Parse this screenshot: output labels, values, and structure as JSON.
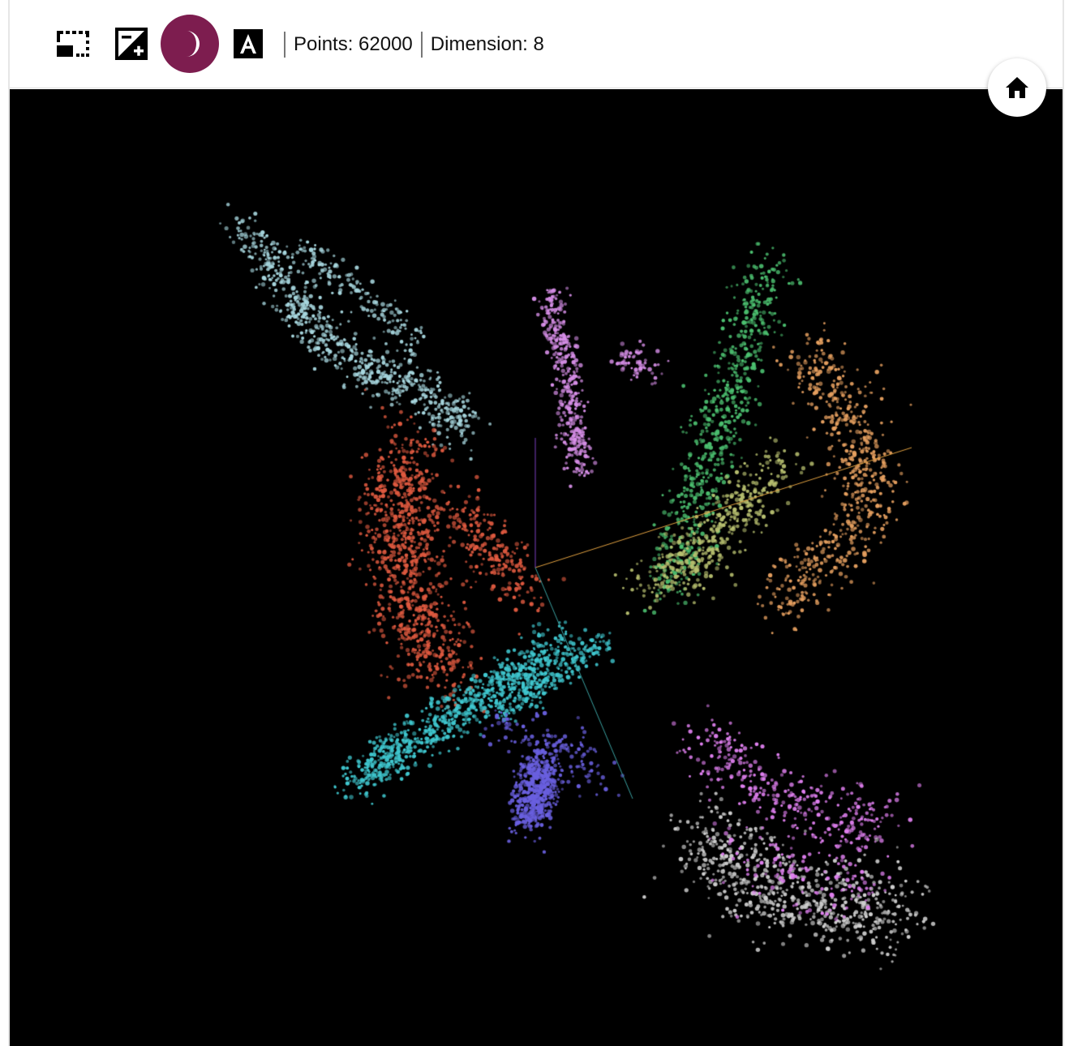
{
  "toolbar": {
    "buttons": [
      {
        "id": "selection",
        "icon": "selection-box-icon",
        "active": false
      },
      {
        "id": "exposure",
        "icon": "exposure-icon",
        "active": false
      },
      {
        "id": "dark-mode",
        "icon": "moon-icon",
        "active": true
      },
      {
        "id": "labels",
        "icon": "letter-a-icon",
        "active": false
      }
    ],
    "points_label": "Points: 62000",
    "dimension_label": "Dimension: 8"
  },
  "home_button": {
    "icon": "home-icon"
  },
  "colors": {
    "accent": "#7d1d4f",
    "background": "#000000",
    "axis_x": "#e0a040",
    "axis_y": "#7a3fc0",
    "axis_z": "#3aa0a0"
  },
  "clusters": [
    {
      "name": "light-blue",
      "color": "#a8d8e0"
    },
    {
      "name": "violet",
      "color": "#d78fe8"
    },
    {
      "name": "green",
      "color": "#4cc070"
    },
    {
      "name": "orange",
      "color": "#e6a060"
    },
    {
      "name": "red",
      "color": "#e05a40"
    },
    {
      "name": "olive",
      "color": "#b8c070"
    },
    {
      "name": "cyan",
      "color": "#40c8d0"
    },
    {
      "name": "blue",
      "color": "#6a60e0"
    },
    {
      "name": "magenta",
      "color": "#e080f0"
    },
    {
      "name": "gray",
      "color": "#d0d0d0"
    }
  ]
}
